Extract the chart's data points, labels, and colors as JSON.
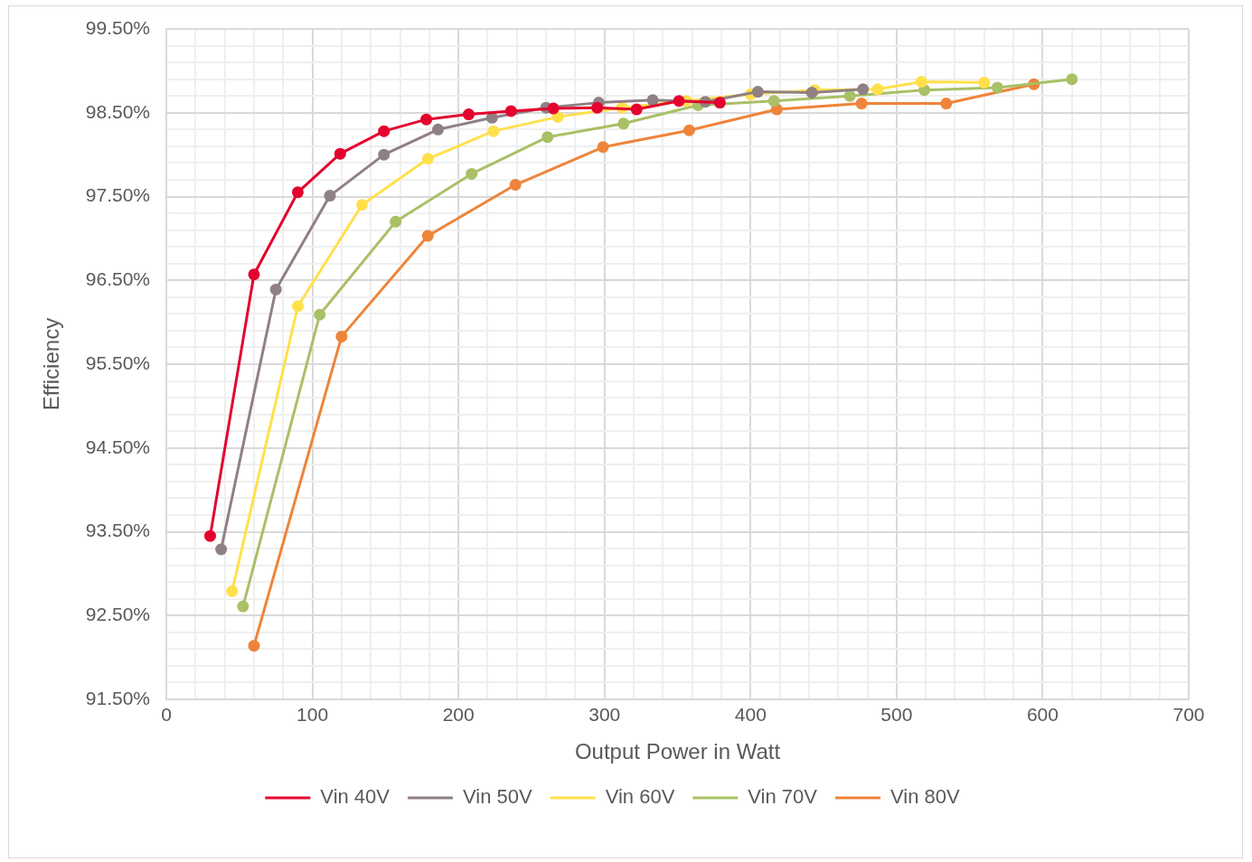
{
  "chart_data": {
    "type": "line",
    "xlabel": "Output Power in Watt",
    "ylabel": "Efficiency",
    "xlim": [
      0,
      700
    ],
    "ylim": [
      91.5,
      99.5
    ],
    "xticks": [
      0,
      {
        "value": 20,
        "label": null
      },
      {
        "value": 40,
        "label": null
      },
      {
        "value": 60,
        "label": null
      },
      {
        "value": 80,
        "label": null
      },
      100,
      {
        "value": 120,
        "label": null
      },
      {
        "value": 140,
        "label": null
      },
      {
        "value": 160,
        "label": null
      },
      {
        "value": 180,
        "label": null
      },
      200,
      {
        "value": 220,
        "label": null
      },
      {
        "value": 240,
        "label": null
      },
      {
        "value": 260,
        "label": null
      },
      {
        "value": 280,
        "label": null
      },
      300,
      {
        "value": 320,
        "label": null
      },
      {
        "value": 340,
        "label": null
      },
      {
        "value": 360,
        "label": null
      },
      {
        "value": 380,
        "label": null
      },
      400,
      {
        "value": 420,
        "label": null
      },
      {
        "value": 440,
        "label": null
      },
      {
        "value": 460,
        "label": null
      },
      {
        "value": 480,
        "label": null
      },
      500,
      {
        "value": 520,
        "label": null
      },
      {
        "value": 540,
        "label": null
      },
      {
        "value": 560,
        "label": null
      },
      {
        "value": 580,
        "label": null
      },
      600,
      {
        "value": 620,
        "label": null
      },
      {
        "value": 640,
        "label": null
      },
      {
        "value": 660,
        "label": null
      },
      {
        "value": 680,
        "label": null
      },
      700
    ],
    "yticks": [
      {
        "value": 91.5,
        "label": "91.50%"
      },
      {
        "value": 91.7,
        "label": null
      },
      {
        "value": 91.9,
        "label": null
      },
      {
        "value": 92.1,
        "label": null
      },
      {
        "value": 92.3,
        "label": null
      },
      {
        "value": 92.5,
        "label": "92.50%"
      },
      {
        "value": 92.7,
        "label": null
      },
      {
        "value": 92.9,
        "label": null
      },
      {
        "value": 93.1,
        "label": null
      },
      {
        "value": 93.3,
        "label": null
      },
      {
        "value": 93.5,
        "label": "93.50%"
      },
      {
        "value": 93.7,
        "label": null
      },
      {
        "value": 93.9,
        "label": null
      },
      {
        "value": 94.1,
        "label": null
      },
      {
        "value": 94.3,
        "label": null
      },
      {
        "value": 94.5,
        "label": "94.50%"
      },
      {
        "value": 94.7,
        "label": null
      },
      {
        "value": 94.9,
        "label": null
      },
      {
        "value": 95.1,
        "label": null
      },
      {
        "value": 95.3,
        "label": null
      },
      {
        "value": 95.5,
        "label": "95.50%"
      },
      {
        "value": 95.7,
        "label": null
      },
      {
        "value": 95.9,
        "label": null
      },
      {
        "value": 96.1,
        "label": null
      },
      {
        "value": 96.3,
        "label": null
      },
      {
        "value": 96.5,
        "label": "96.50%"
      },
      {
        "value": 96.7,
        "label": null
      },
      {
        "value": 96.9,
        "label": null
      },
      {
        "value": 97.1,
        "label": null
      },
      {
        "value": 97.3,
        "label": null
      },
      {
        "value": 97.5,
        "label": "97.50%"
      },
      {
        "value": 97.7,
        "label": null
      },
      {
        "value": 97.9,
        "label": null
      },
      {
        "value": 98.1,
        "label": null
      },
      {
        "value": 98.3,
        "label": null
      },
      {
        "value": 98.5,
        "label": "98.50%"
      },
      {
        "value": 98.7,
        "label": null
      },
      {
        "value": 98.9,
        "label": null
      },
      {
        "value": 99.1,
        "label": null
      },
      {
        "value": 99.3,
        "label": null
      },
      {
        "value": 99.5,
        "label": "99.50%"
      }
    ],
    "grid": true,
    "legend": "bottom",
    "marker": "circle",
    "line_style": "solid",
    "series": [
      {
        "name": "Vin 40V",
        "color": "#e4032e",
        "x": [
          30,
          60,
          90,
          119,
          149,
          178,
          207,
          236,
          265,
          295,
          322,
          351,
          379
        ],
        "values": [
          93.45,
          96.57,
          97.55,
          98.01,
          98.28,
          98.42,
          98.48,
          98.52,
          98.55,
          98.56,
          98.54,
          98.64,
          98.62
        ]
      },
      {
        "name": "Vin 50V",
        "color": "#8f8083",
        "x": [
          37.5,
          75,
          112,
          149,
          186,
          223,
          260,
          296,
          333,
          369,
          405,
          442,
          477
        ],
        "values": [
          93.29,
          96.39,
          97.51,
          98.0,
          98.3,
          98.44,
          98.56,
          98.62,
          98.65,
          98.63,
          98.75,
          98.74,
          98.78
        ]
      },
      {
        "name": "Vin 60V",
        "color": "#ffe04b",
        "x": [
          45,
          90,
          134,
          179,
          224,
          268,
          312,
          356,
          400,
          444,
          487,
          517,
          560
        ],
        "values": [
          92.79,
          96.19,
          97.4,
          97.95,
          98.28,
          98.45,
          98.56,
          98.64,
          98.72,
          98.77,
          98.78,
          98.87,
          98.86
        ]
      },
      {
        "name": "Vin 70V",
        "color": "#a9c066",
        "x": [
          52.5,
          105,
          157,
          209,
          261,
          313,
          364,
          416,
          468,
          519,
          569,
          620
        ],
        "values": [
          92.61,
          96.09,
          97.2,
          97.77,
          98.21,
          98.37,
          98.59,
          98.64,
          98.7,
          98.77,
          98.8,
          98.9
        ]
      },
      {
        "name": "Vin 80V",
        "color": "#ee843a",
        "x": [
          60,
          120,
          179,
          239,
          299,
          358,
          418,
          476,
          534,
          594
        ],
        "values": [
          92.14,
          95.83,
          97.03,
          97.64,
          98.09,
          98.29,
          98.54,
          98.61,
          98.61,
          98.84
        ]
      }
    ]
  }
}
